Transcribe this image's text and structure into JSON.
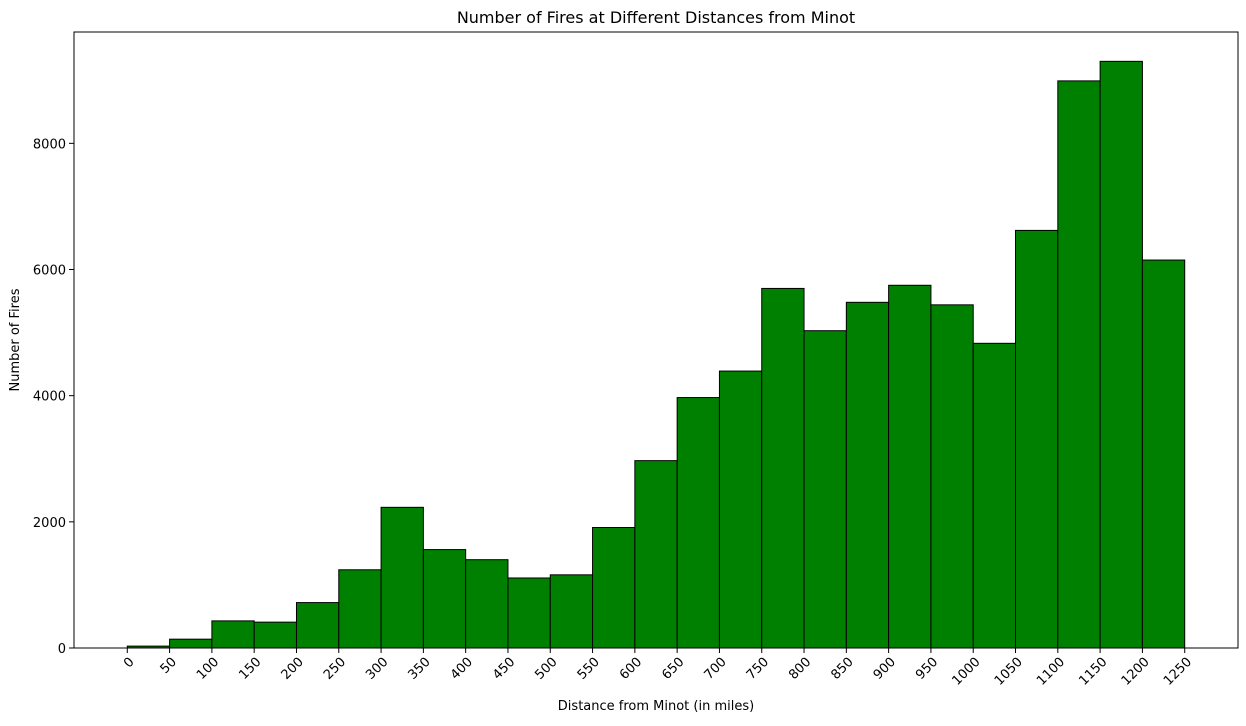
{
  "chart_data": {
    "type": "bar",
    "title": "Number of Fires at Different Distances from Minot",
    "xlabel": "Distance from Minot (in miles)",
    "ylabel": "Number of Fires",
    "bin_edges": [
      0,
      50,
      100,
      150,
      200,
      250,
      300,
      350,
      400,
      450,
      500,
      550,
      600,
      650,
      700,
      750,
      800,
      850,
      900,
      950,
      1000,
      1050,
      1100,
      1150,
      1200,
      1250
    ],
    "x_tick_labels": [
      "0",
      "50",
      "100",
      "150",
      "200",
      "250",
      "300",
      "350",
      "400",
      "450",
      "500",
      "550",
      "600",
      "650",
      "700",
      "750",
      "800",
      "850",
      "900",
      "950",
      "1000",
      "1050",
      "1100",
      "1150",
      "1200",
      "1250"
    ],
    "values": [
      30,
      140,
      430,
      410,
      720,
      1240,
      2230,
      1560,
      1400,
      1110,
      1160,
      1910,
      2970,
      3970,
      4390,
      5700,
      5030,
      5480,
      5750,
      5440,
      4830,
      6620,
      8990,
      9300,
      6150
    ],
    "y_ticks": [
      0,
      2000,
      4000,
      6000,
      8000
    ],
    "y_tick_labels": [
      "0",
      "2000",
      "4000",
      "6000",
      "8000"
    ],
    "xlim": [
      -63,
      1313
    ],
    "ylim": [
      0,
      9765
    ],
    "grid": false,
    "legend": false,
    "bar_color": "#008000",
    "edge_color": "#000000"
  }
}
